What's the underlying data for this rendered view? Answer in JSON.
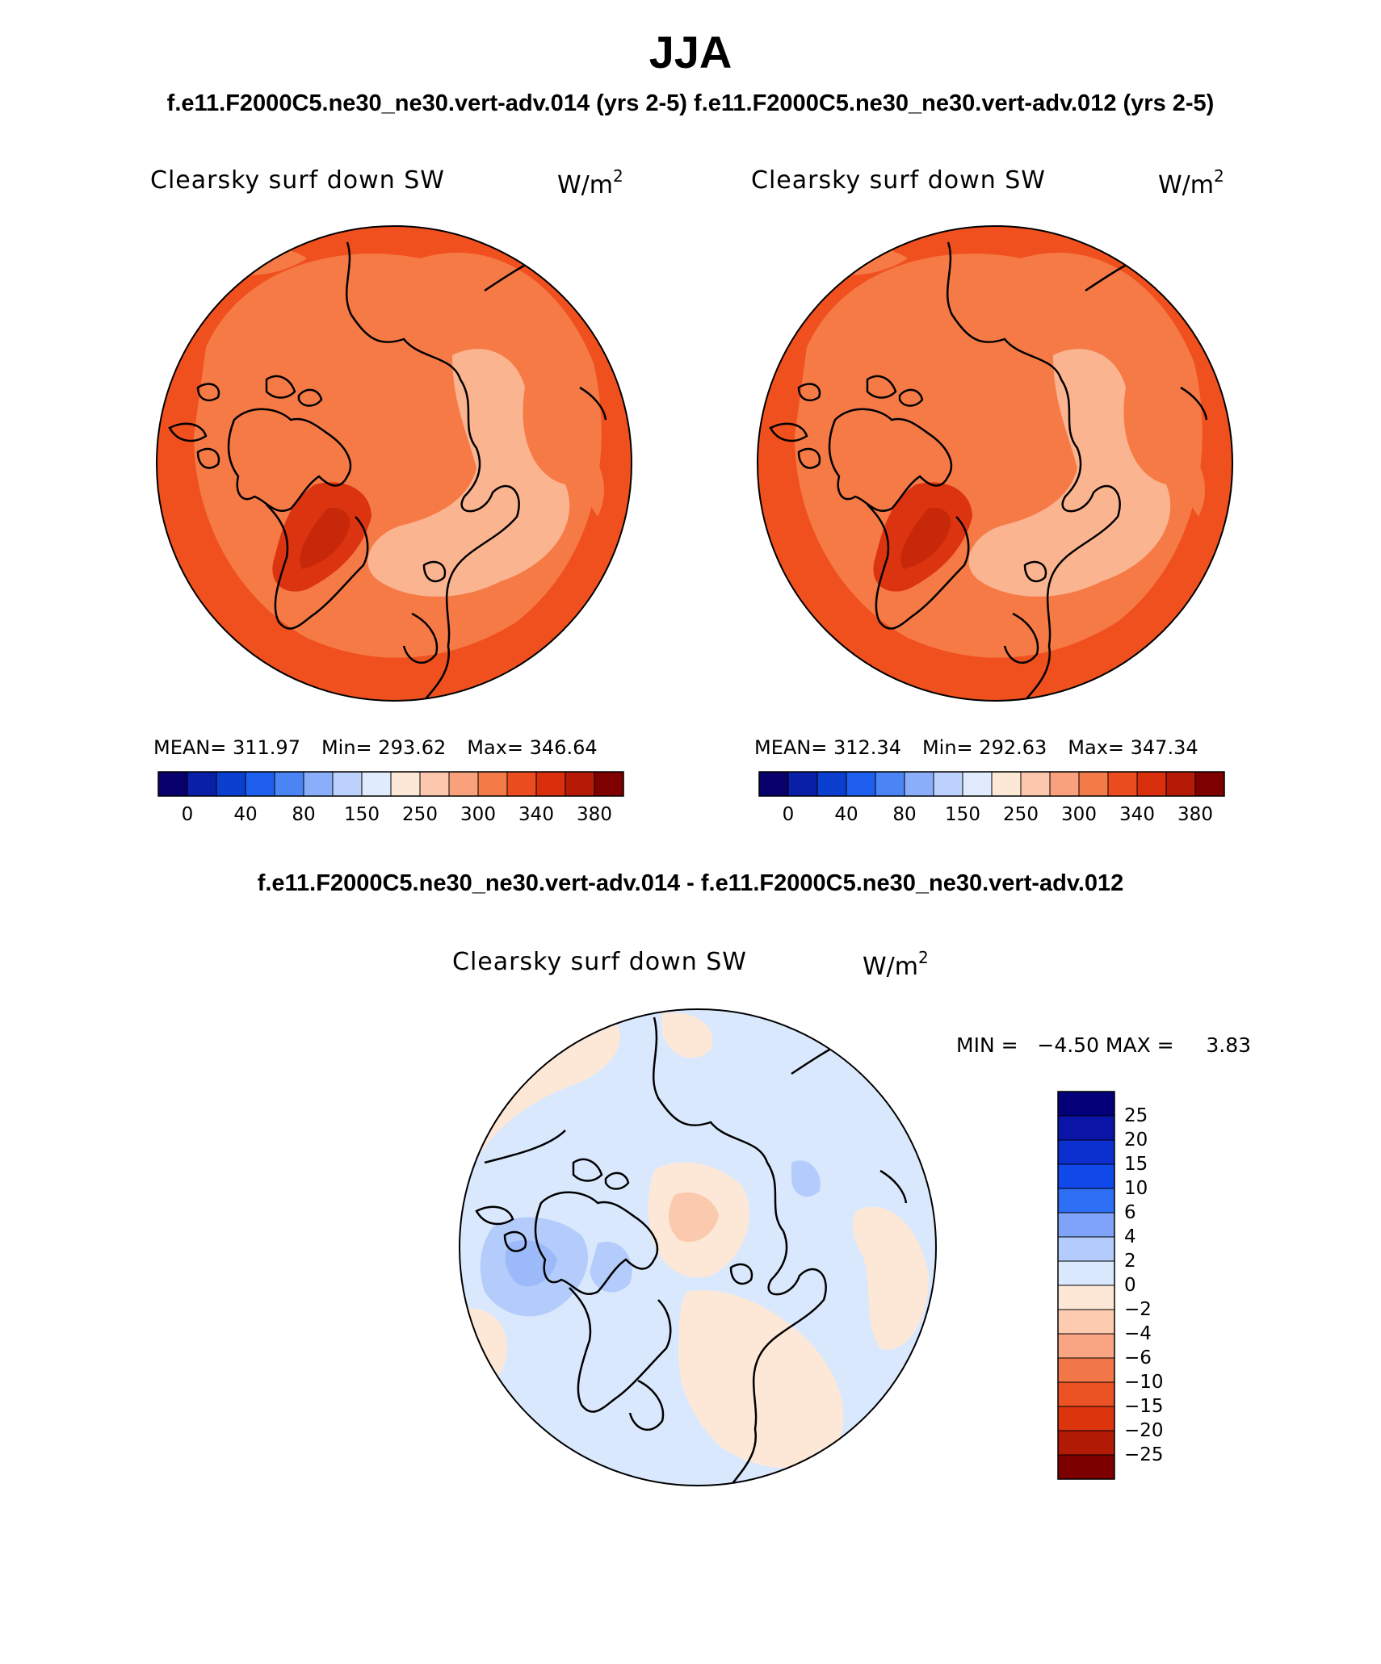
{
  "title": "JJA",
  "case_a_label": "f.e11.F2000C5.ne30_ne30.vert-adv.014 (yrs 2-5)",
  "case_b_label": "f.e11.F2000C5.ne30_ne30.vert-adv.012 (yrs 2-5)",
  "diff_label": "f.e11.F2000C5.ne30_ne30.vert-adv.014 - f.e11.F2000C5.ne30_ne30.vert-adv.012",
  "panels": {
    "left": {
      "variable": "Clearsky surf down SW",
      "units": "W/m",
      "units_sup": "2",
      "mean": "MEAN= 311.97",
      "min": "Min= 293.62",
      "max": "Max= 346.64"
    },
    "right": {
      "variable": "Clearsky surf down SW",
      "units": "W/m",
      "units_sup": "2",
      "mean": "MEAN= 312.34",
      "min": "Min= 292.63",
      "max": "Max= 347.34"
    },
    "diff": {
      "variable": "Clearsky surf down SW",
      "units": "W/m",
      "units_sup": "2",
      "minmax": "MIN =   −4.50 MAX =     3.83"
    }
  },
  "abs_colorbar": {
    "colors": [
      "#08006b",
      "#0a1fa8",
      "#0b3fd0",
      "#1e5fef",
      "#4a84f5",
      "#8aaefa",
      "#bcd2fc",
      "#e0ecfd",
      "#fde7d7",
      "#fcc8ad",
      "#f9a07c",
      "#f47a48",
      "#ec4d1f",
      "#da2f0c",
      "#b41a06",
      "#7f0000"
    ],
    "labels": [
      "0",
      "40",
      "80",
      "150",
      "250",
      "300",
      "340",
      "380"
    ]
  },
  "diff_colorbar": {
    "colors": [
      "#04007a",
      "#0a15a8",
      "#0c2fcf",
      "#1249ea",
      "#2d6ff5",
      "#7ea3f8",
      "#b4ccfb",
      "#d9e8fd",
      "#fde8d8",
      "#fdcbb0",
      "#f9a483",
      "#f27748",
      "#eb5324",
      "#dc350d",
      "#b11a05",
      "#7d0000"
    ],
    "labels": [
      "25",
      "20",
      "15",
      "10",
      "6",
      "4",
      "2",
      "0",
      "−2",
      "−4",
      "−6",
      "−10",
      "−15",
      "−20",
      "−25"
    ]
  },
  "map_colors": {
    "outer": "#f0501e",
    "mid": "#f57a46",
    "light": "#fbb490",
    "greenland": "#dc3410",
    "diff_base": "#d9e8fd",
    "diff_warm": "#fde8d8",
    "diff_warm2": "#fbc9ad",
    "diff_cool": "#b4ccfb",
    "diff_cool2": "#9cbaf9"
  }
}
